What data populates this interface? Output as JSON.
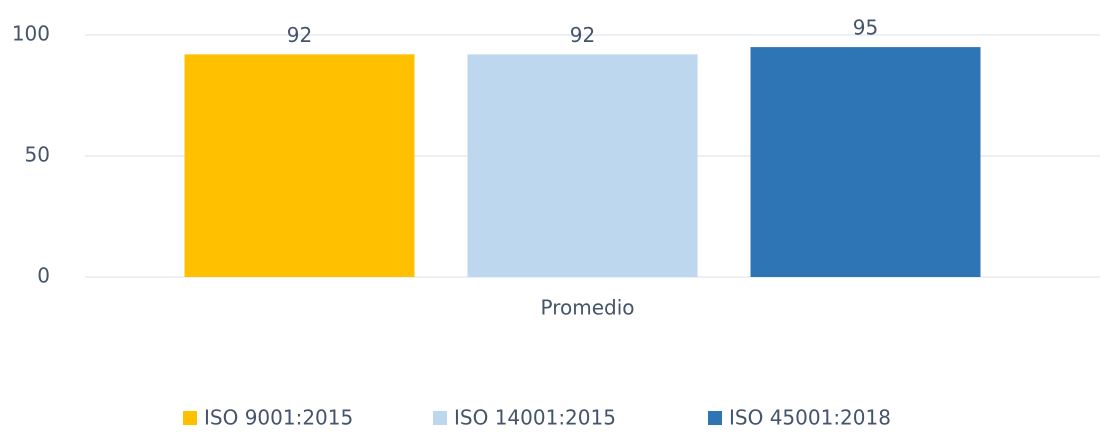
{
  "chart_data": {
    "type": "bar",
    "categories": [
      "Promedio"
    ],
    "series": [
      {
        "name": "ISO 9001:2015",
        "color": "#ffc000",
        "values": [
          92
        ]
      },
      {
        "name": "ISO 14001:2015",
        "color": "#bdd7ee",
        "values": [
          92
        ]
      },
      {
        "name": "ISO 45001:2018",
        "color": "#2e75b6",
        "values": [
          95
        ]
      }
    ],
    "ylim": [
      0,
      100
    ],
    "yticks": [
      0,
      50,
      100
    ],
    "grid": true,
    "legend": "bottom"
  }
}
